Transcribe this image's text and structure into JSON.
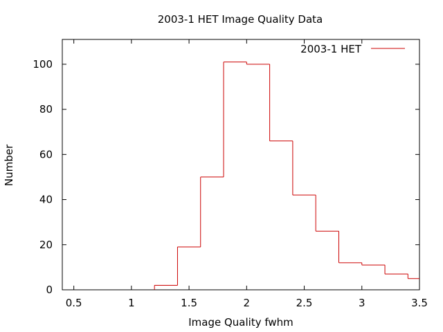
{
  "chart_data": {
    "type": "line",
    "style": "step",
    "title": "2003-1 HET Image Quality Data",
    "xlabel": "Image Quality fwhm",
    "ylabel": "Number",
    "xlim": [
      0.4,
      3.5
    ],
    "ylim": [
      0,
      111
    ],
    "x_ticks": [
      "0.5",
      "1",
      "1.5",
      "2",
      "2.5",
      "3",
      "3.5"
    ],
    "y_ticks": [
      "0",
      "20",
      "40",
      "60",
      "80",
      "100"
    ],
    "grid": false,
    "legend_position": "top-right",
    "series": [
      {
        "name": "2003-1 HET",
        "color": "#cc0000",
        "bins": [
          {
            "x0": 1.2,
            "x1": 1.4,
            "y": 2
          },
          {
            "x0": 1.4,
            "x1": 1.6,
            "y": 19
          },
          {
            "x0": 1.6,
            "x1": 1.8,
            "y": 50
          },
          {
            "x0": 1.8,
            "x1": 2.0,
            "y": 101
          },
          {
            "x0": 2.0,
            "x1": 2.2,
            "y": 100
          },
          {
            "x0": 2.2,
            "x1": 2.4,
            "y": 66
          },
          {
            "x0": 2.4,
            "x1": 2.6,
            "y": 42
          },
          {
            "x0": 2.6,
            "x1": 2.8,
            "y": 26
          },
          {
            "x0": 2.8,
            "x1": 3.0,
            "y": 12
          },
          {
            "x0": 3.0,
            "x1": 3.2,
            "y": 11
          },
          {
            "x0": 3.2,
            "x1": 3.4,
            "y": 7
          },
          {
            "x0": 3.4,
            "x1": 3.5,
            "y": 5
          }
        ]
      }
    ]
  }
}
